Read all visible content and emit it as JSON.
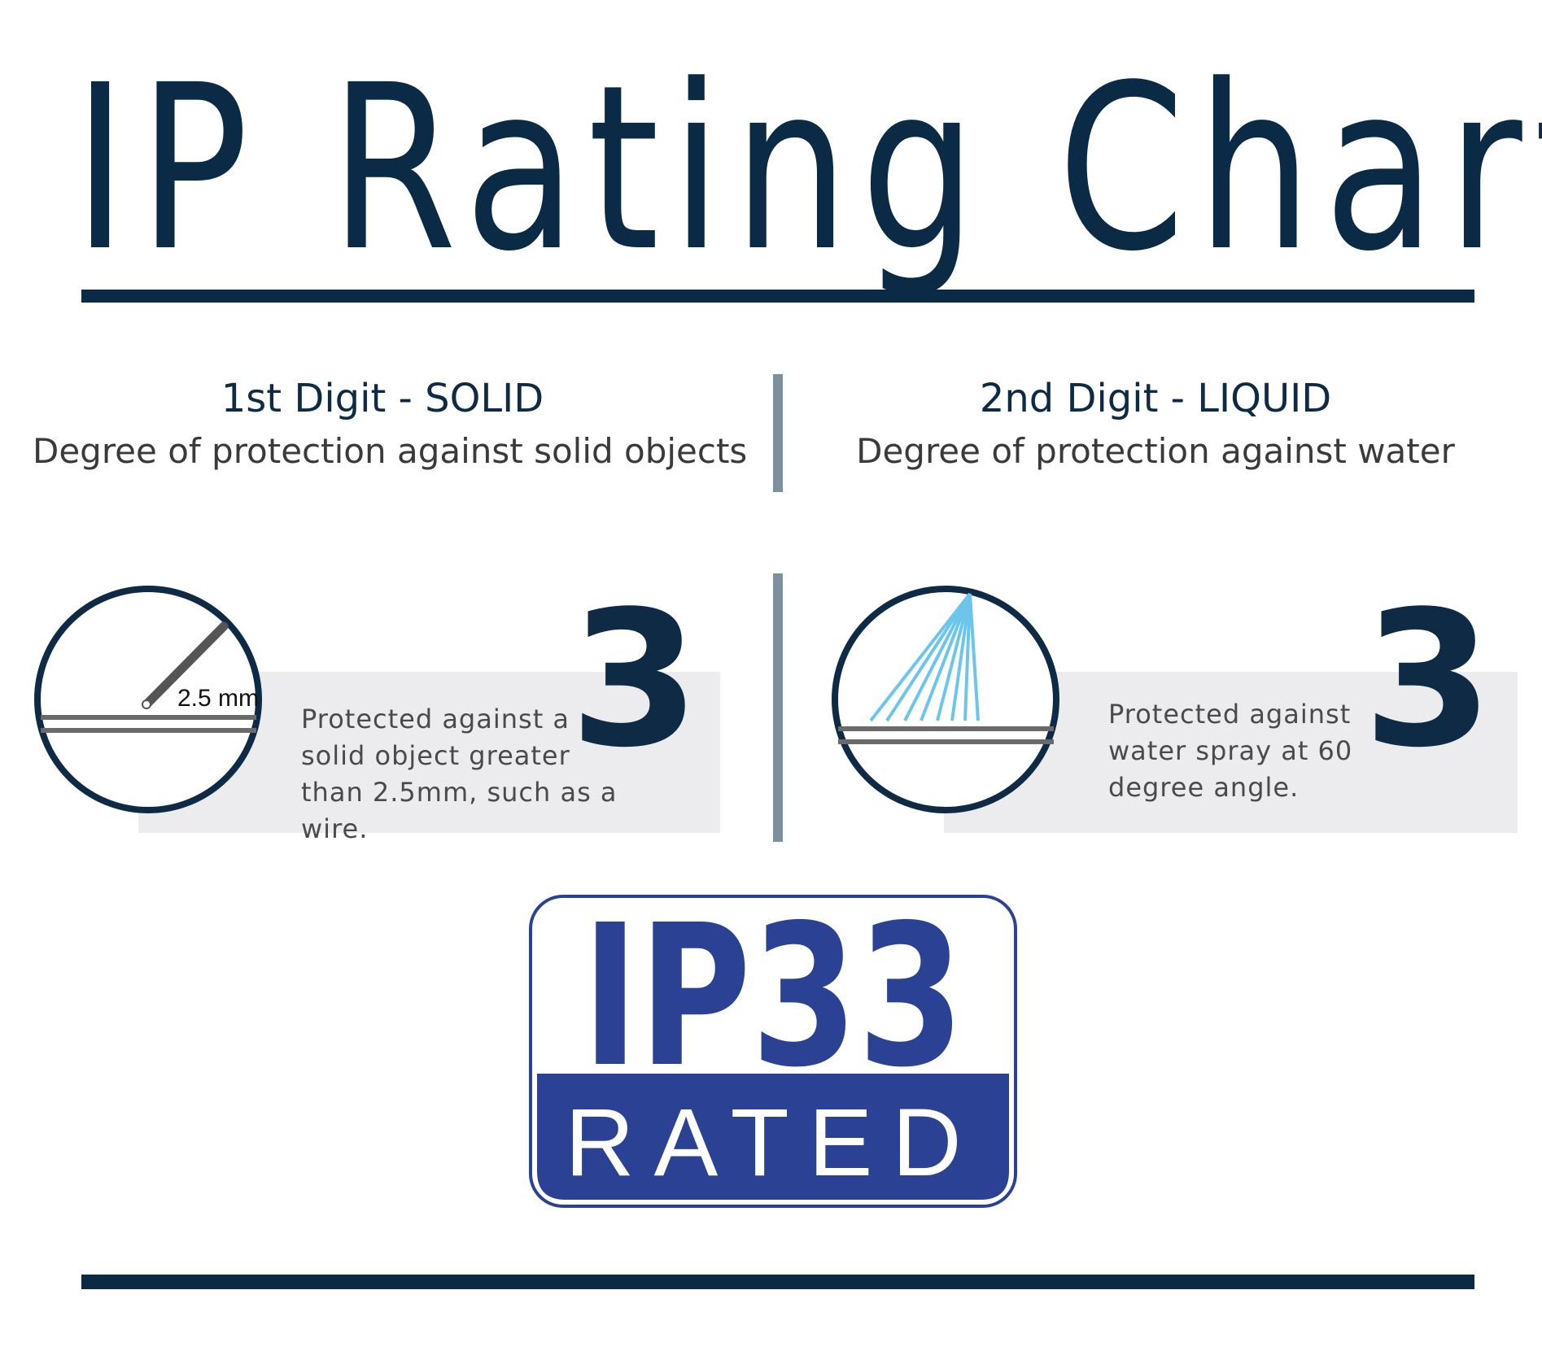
{
  "title": "IP Rating Chart",
  "solid": {
    "heading": "1st Digit - SOLID",
    "subheading": "Degree of protection against solid objects",
    "digit": "3",
    "icon_label": "2.5 mm",
    "icon": "wire-icon",
    "description_lines": [
      "Protected against a",
      "solid object greater",
      "than 2.5mm, such as a wire."
    ]
  },
  "liquid": {
    "heading": "2nd Digit - LIQUID",
    "subheading": "Degree of protection against water",
    "digit": "3",
    "icon": "water-spray-icon",
    "description_lines": [
      "Protected against",
      "water spray at 60",
      "degree angle."
    ]
  },
  "badge": {
    "code": "IP33",
    "label": "RATED"
  },
  "colors": {
    "navy": "#0b2a45",
    "badge_blue": "#2b4193",
    "panel_grey": "#ececee",
    "divider": "#7c909f",
    "spray": "#6cc6ec"
  }
}
